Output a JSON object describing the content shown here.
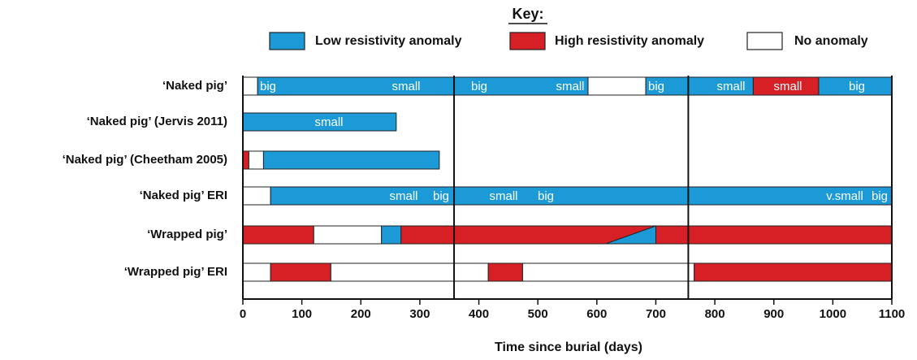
{
  "chart_data": {
    "type": "timeline",
    "legend_title": "Key:",
    "x_label": "Time since burial (days)",
    "xlim": [
      0,
      1100
    ],
    "xticks": [
      0,
      100,
      200,
      300,
      400,
      500,
      600,
      700,
      800,
      900,
      1000,
      1100
    ],
    "vlines": [
      358,
      755
    ],
    "categories": [
      "‘Naked pig’",
      "‘Naked pig’ (Jervis 2011)",
      "‘Naked pig’ (Cheetham 2005)",
      "‘Naked pig’ ERI",
      "‘Wrapped pig’",
      "‘Wrapped pig’ ERI"
    ],
    "segment_labels": [
      [
        "big",
        "small",
        "big",
        "small",
        "big",
        "small",
        "small",
        "big"
      ],
      [
        "small"
      ],
      [],
      [
        "small",
        "big",
        "small",
        "big",
        "v.small",
        "big"
      ],
      [],
      []
    ],
    "series": [
      {
        "name": "Low resistivity anomaly",
        "color": "#1b9ad7",
        "values": [
          [
            [
              25,
              585
            ],
            [
              683,
              865
            ],
            [
              976,
              1100
            ]
          ],
          [
            [
              0,
              260
            ]
          ],
          [
            [
              35,
              333
            ]
          ],
          [
            [
              47,
              1100
            ]
          ],
          [
            [
              235,
              268
            ],
            [
              615,
              700
            ]
          ],
          []
        ]
      },
      {
        "name": "High resistivity anomaly",
        "color": "#d71f26",
        "values": [
          [
            [
              865,
              976
            ]
          ],
          [],
          [
            [
              0,
              10
            ]
          ],
          [],
          [
            [
              0,
              120
            ],
            [
              268,
              1100
            ]
          ],
          [
            [
              47,
              149
            ],
            [
              416,
              474
            ],
            [
              765,
              1100
            ]
          ]
        ]
      },
      {
        "name": "No anomaly",
        "color": "#ffffff",
        "values": [
          [
            [
              0,
              25
            ],
            [
              585,
              683
            ]
          ],
          [],
          [
            [
              10,
              35
            ]
          ],
          [
            [
              0,
              47
            ]
          ],
          [
            [
              120,
              235
            ]
          ],
          [
            [
              0,
              47
            ],
            [
              149,
              416
            ],
            [
              474,
              765
            ]
          ]
        ]
      }
    ]
  }
}
